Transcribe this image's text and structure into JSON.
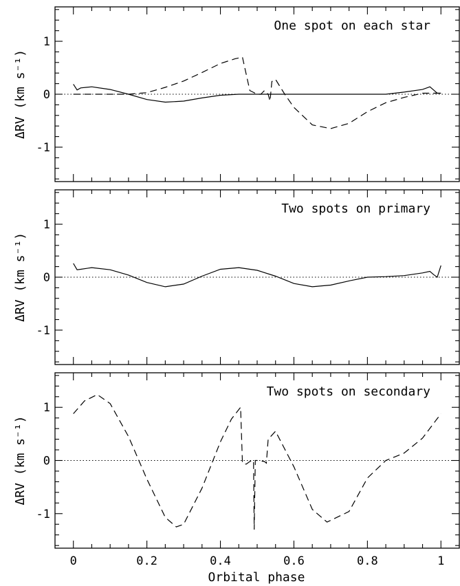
{
  "chart_data": [
    {
      "type": "line",
      "title": "One spot on each star",
      "xlabel": "",
      "ylabel": "ΔRV (km s⁻¹)",
      "xlim": [
        -0.05,
        1.05
      ],
      "ylim": [
        -1.65,
        1.65
      ],
      "xticks": [
        0,
        0.2,
        0.4,
        0.6,
        0.8,
        1
      ],
      "yticks": [
        -1,
        0,
        1
      ],
      "grid": false,
      "series": [
        {
          "style": "solid",
          "x": [
            0,
            0.01,
            0.02,
            0.05,
            0.1,
            0.15,
            0.2,
            0.25,
            0.3,
            0.35,
            0.4,
            0.45,
            0.5,
            0.55,
            0.6,
            0.65,
            0.7,
            0.75,
            0.8,
            0.85,
            0.9,
            0.95,
            0.97,
            0.98,
            0.99,
            1.0
          ],
          "y": [
            0.19,
            0.08,
            0.12,
            0.14,
            0.09,
            0.0,
            -0.1,
            -0.15,
            -0.13,
            -0.07,
            -0.02,
            0.0,
            0.0,
            0.0,
            0.0,
            0.0,
            0.0,
            0.0,
            0.0,
            0.0,
            0.04,
            0.09,
            0.14,
            0.08,
            0.02,
            0.02
          ]
        },
        {
          "style": "dashed",
          "x": [
            0,
            0.05,
            0.1,
            0.15,
            0.2,
            0.25,
            0.3,
            0.35,
            0.4,
            0.44,
            0.46,
            0.48,
            0.5,
            0.51,
            0.52,
            0.53,
            0.535,
            0.54,
            0.55,
            0.575,
            0.6,
            0.65,
            0.7,
            0.75,
            0.8,
            0.85,
            0.9,
            0.95,
            1.0
          ],
          "y": [
            0.0,
            0.0,
            0.0,
            0.0,
            0.03,
            0.13,
            0.25,
            0.41,
            0.58,
            0.67,
            0.7,
            0.07,
            0.0,
            0.0,
            0.07,
            0.0,
            -0.13,
            0.24,
            0.28,
            0.0,
            -0.25,
            -0.58,
            -0.65,
            -0.55,
            -0.33,
            -0.16,
            -0.06,
            0.02,
            0.02
          ]
        }
      ]
    },
    {
      "type": "line",
      "title": "Two spots on primary",
      "xlabel": "",
      "ylabel": "ΔRV (km s⁻¹)",
      "xlim": [
        -0.05,
        1.05
      ],
      "ylim": [
        -1.65,
        1.65
      ],
      "xticks": [
        0,
        0.2,
        0.4,
        0.6,
        0.8,
        1
      ],
      "yticks": [
        -1,
        0,
        1
      ],
      "grid": false,
      "series": [
        {
          "style": "solid",
          "x": [
            0,
            0.01,
            0.02,
            0.05,
            0.1,
            0.15,
            0.2,
            0.25,
            0.3,
            0.35,
            0.4,
            0.45,
            0.5,
            0.55,
            0.6,
            0.65,
            0.7,
            0.75,
            0.8,
            0.85,
            0.9,
            0.95,
            0.97,
            0.98,
            0.99,
            1.0
          ],
          "y": [
            0.26,
            0.14,
            0.15,
            0.18,
            0.14,
            0.04,
            -0.1,
            -0.18,
            -0.13,
            0.02,
            0.15,
            0.18,
            0.13,
            0.02,
            -0.12,
            -0.18,
            -0.15,
            -0.07,
            0.0,
            0.01,
            0.03,
            0.08,
            0.11,
            0.05,
            0.0,
            0.22
          ]
        }
      ]
    },
    {
      "type": "line",
      "title": "Two spots on secondary",
      "xlabel": "Orbital phase",
      "ylabel": "ΔRV (km s⁻¹)",
      "xlim": [
        -0.05,
        1.05
      ],
      "ylim": [
        -1.65,
        1.65
      ],
      "xticks": [
        0,
        0.2,
        0.4,
        0.6,
        0.8,
        1
      ],
      "yticks": [
        -1,
        0,
        1
      ],
      "grid": false,
      "series": [
        {
          "style": "dashed",
          "x": [
            0,
            0.03,
            0.065,
            0.1,
            0.15,
            0.2,
            0.25,
            0.28,
            0.3,
            0.35,
            0.4,
            0.43,
            0.455,
            0.46,
            0.47,
            0.48,
            0.49,
            0.492,
            0.495,
            0.5,
            0.52,
            0.525,
            0.53,
            0.55,
            0.6,
            0.65,
            0.69,
            0.75,
            0.8,
            0.85,
            0.9,
            0.95,
            1.0
          ],
          "y": [
            0.88,
            1.12,
            1.24,
            1.07,
            0.45,
            -0.35,
            -1.07,
            -1.25,
            -1.2,
            -0.52,
            0.35,
            0.78,
            1.0,
            -0.05,
            -0.07,
            -0.02,
            0.0,
            -1.3,
            0.0,
            0.0,
            -0.02,
            -0.05,
            0.4,
            0.55,
            -0.12,
            -0.92,
            -1.16,
            -0.96,
            -0.33,
            0.0,
            0.14,
            0.42,
            0.88
          ]
        }
      ]
    }
  ]
}
